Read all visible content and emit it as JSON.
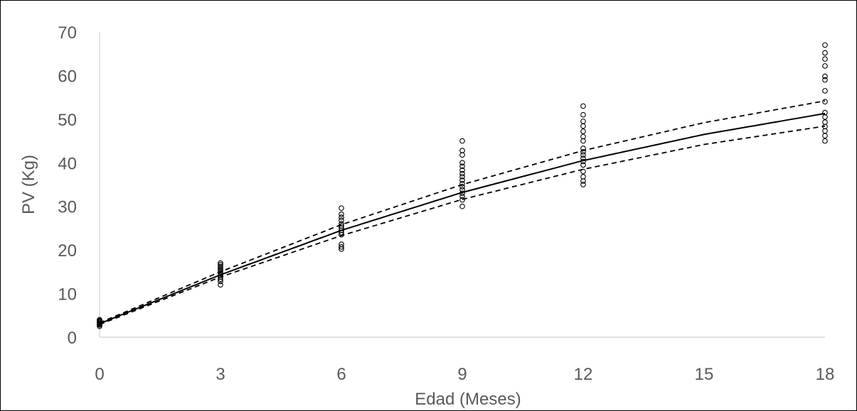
{
  "chart_data": {
    "type": "scatter",
    "title": "",
    "xlabel": "Edad (Meses)",
    "ylabel": "PV (Kg)",
    "xlim": [
      0,
      18
    ],
    "ylim": [
      0,
      70
    ],
    "x_ticks": [
      0,
      3,
      6,
      9,
      12,
      15,
      18
    ],
    "y_ticks": [
      0,
      10,
      20,
      30,
      40,
      50,
      60,
      70
    ],
    "grid": false,
    "legend": "none",
    "colors": {
      "axis": "#d9d9d9",
      "text": "#595959",
      "marker": "#000000",
      "line": "#000000",
      "marker_alt": "#4472c4"
    },
    "observations": [
      {
        "x": 0,
        "y": 2.5
      },
      {
        "x": 0,
        "y": 2.8
      },
      {
        "x": 0,
        "y": 3.0
      },
      {
        "x": 0,
        "y": 3.2
      },
      {
        "x": 0,
        "y": 3.4
      },
      {
        "x": 0,
        "y": 3.6
      },
      {
        "x": 0,
        "y": 3.8
      },
      {
        "x": 0,
        "y": 4.0
      },
      {
        "x": 3,
        "y": 12.0
      },
      {
        "x": 3,
        "y": 12.8
      },
      {
        "x": 3,
        "y": 13.3
      },
      {
        "x": 3,
        "y": 13.8
      },
      {
        "x": 3,
        "y": 14.2
      },
      {
        "x": 3,
        "y": 14.6
      },
      {
        "x": 3,
        "y": 15.0
      },
      {
        "x": 3,
        "y": 15.4
      },
      {
        "x": 3,
        "y": 15.8
      },
      {
        "x": 3,
        "y": 16.2
      },
      {
        "x": 3,
        "y": 16.6
      },
      {
        "x": 3,
        "y": 17.0
      },
      {
        "x": 6,
        "y": 20.2
      },
      {
        "x": 6,
        "y": 20.7
      },
      {
        "x": 6,
        "y": 21.3
      },
      {
        "x": 6,
        "y": 23.5
      },
      {
        "x": 6,
        "y": 24.0
      },
      {
        "x": 6,
        "y": 24.5
      },
      {
        "x": 6,
        "y": 25.0
      },
      {
        "x": 6,
        "y": 25.5
      },
      {
        "x": 6,
        "y": 26.0
      },
      {
        "x": 6,
        "y": 26.8
      },
      {
        "x": 6,
        "y": 27.5
      },
      {
        "x": 6,
        "y": 28.2
      },
      {
        "x": 6,
        "y": 29.6
      },
      {
        "x": 9,
        "y": 30.0
      },
      {
        "x": 9,
        "y": 31.5
      },
      {
        "x": 9,
        "y": 32.3
      },
      {
        "x": 9,
        "y": 33.0
      },
      {
        "x": 9,
        "y": 33.8
      },
      {
        "x": 9,
        "y": 34.5
      },
      {
        "x": 9,
        "y": 35.2
      },
      {
        "x": 9,
        "y": 36.0
      },
      {
        "x": 9,
        "y": 36.8
      },
      {
        "x": 9,
        "y": 37.5
      },
      {
        "x": 9,
        "y": 38.3
      },
      {
        "x": 9,
        "y": 39.2
      },
      {
        "x": 9,
        "y": 40.0
      },
      {
        "x": 9,
        "y": 41.8
      },
      {
        "x": 9,
        "y": 42.8
      },
      {
        "x": 9,
        "y": 45.0
      },
      {
        "x": 12,
        "y": 35.0
      },
      {
        "x": 12,
        "y": 35.8
      },
      {
        "x": 12,
        "y": 36.8
      },
      {
        "x": 12,
        "y": 38.0
      },
      {
        "x": 12,
        "y": 39.5
      },
      {
        "x": 12,
        "y": 40.3
      },
      {
        "x": 12,
        "y": 41.0
      },
      {
        "x": 12,
        "y": 41.8
      },
      {
        "x": 12,
        "y": 42.5
      },
      {
        "x": 12,
        "y": 43.3
      },
      {
        "x": 12,
        "y": 45.0
      },
      {
        "x": 12,
        "y": 46.0
      },
      {
        "x": 12,
        "y": 47.2
      },
      {
        "x": 12,
        "y": 48.4
      },
      {
        "x": 12,
        "y": 49.5
      },
      {
        "x": 12,
        "y": 51.0
      },
      {
        "x": 12,
        "y": 53.0
      },
      {
        "x": 18,
        "y": 45.0
      },
      {
        "x": 18,
        "y": 46.2
      },
      {
        "x": 18,
        "y": 47.3
      },
      {
        "x": 18,
        "y": 48.3
      },
      {
        "x": 18,
        "y": 49.3
      },
      {
        "x": 18,
        "y": 50.5
      },
      {
        "x": 18,
        "y": 51.5
      },
      {
        "x": 18,
        "y": 54.0
      },
      {
        "x": 18,
        "y": 56.5
      },
      {
        "x": 18,
        "y": 59.0
      },
      {
        "x": 18,
        "y": 59.8
      },
      {
        "x": 18,
        "y": 62.2
      },
      {
        "x": 18,
        "y": 63.8
      },
      {
        "x": 18,
        "y": 65.2
      },
      {
        "x": 18,
        "y": 67.0
      }
    ],
    "curves": [
      {
        "style": "solid",
        "x": [
          0,
          3,
          6,
          9,
          12,
          15,
          18
        ],
        "y": [
          3.1,
          14.3,
          24.5,
          33.2,
          40.5,
          46.5,
          51.3
        ]
      },
      {
        "style": "dashed",
        "x": [
          0,
          3,
          6,
          9,
          12,
          15,
          18
        ],
        "y": [
          3.3,
          15.0,
          25.8,
          35.0,
          42.8,
          49.2,
          54.2
        ]
      },
      {
        "style": "dashed",
        "x": [
          0,
          3,
          6,
          9,
          12,
          15,
          18
        ],
        "y": [
          2.9,
          13.8,
          23.3,
          31.6,
          38.5,
          44.2,
          48.4
        ]
      }
    ]
  }
}
